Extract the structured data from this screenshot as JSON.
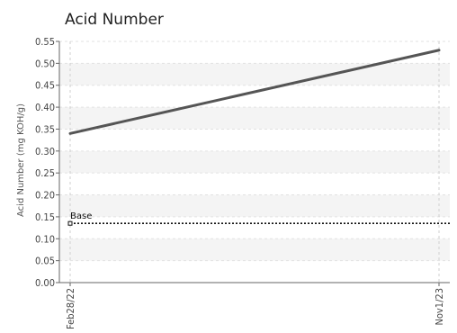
{
  "chart_data": {
    "type": "line",
    "title": "Acid Number",
    "ylabel": "Acid Number (mg KOH/g)",
    "xlabel": "",
    "x_categories": [
      "Feb28/22",
      "Nov1/23"
    ],
    "series": [
      {
        "values": [
          0.34,
          0.53
        ],
        "color": "#555555"
      }
    ],
    "baseline": {
      "label": "Base",
      "value": 0.135,
      "color": "#111111"
    },
    "ylim": [
      0,
      0.55
    ],
    "yticks": [
      "0.00",
      "0.05",
      "0.10",
      "0.15",
      "0.20",
      "0.25",
      "0.30",
      "0.35",
      "0.40",
      "0.45",
      "0.50",
      "0.55"
    ],
    "grid": true,
    "band_color": "#f4f4f4"
  }
}
